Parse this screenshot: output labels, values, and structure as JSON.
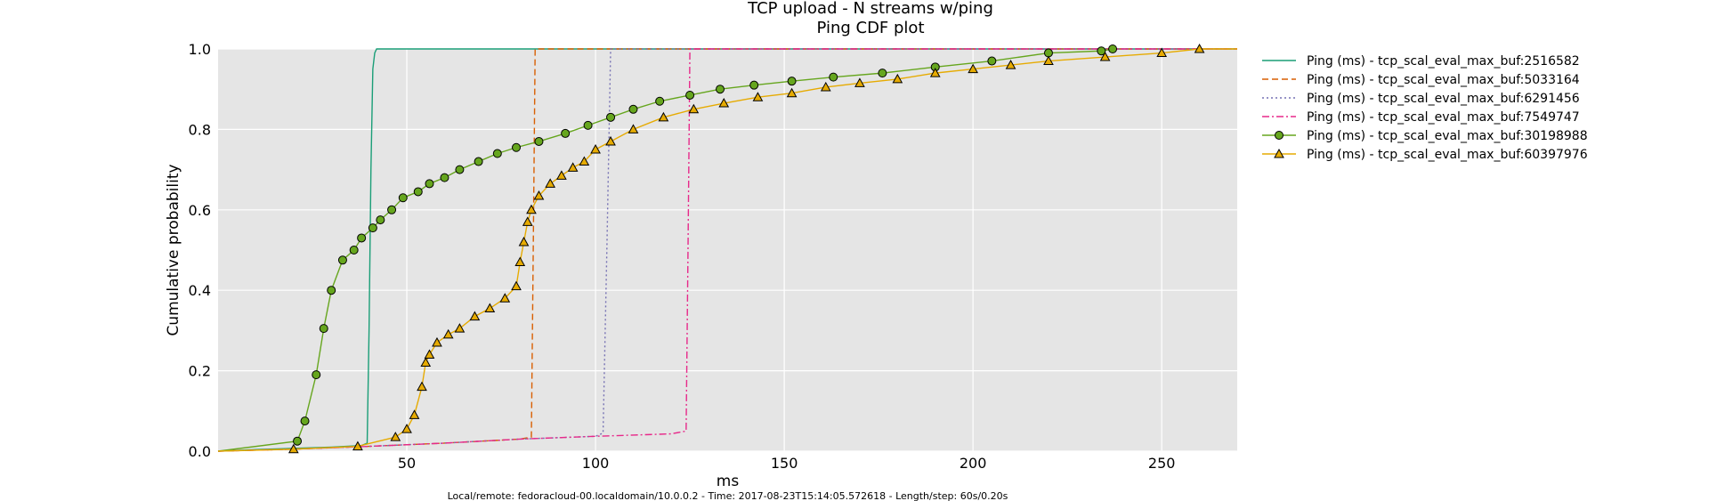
{
  "chart_data": {
    "type": "line",
    "title": "TCP upload - N streams w/ping",
    "subtitle": "Ping CDF plot",
    "xlabel": "ms",
    "ylabel": "Cumulative probability",
    "xlim": [
      0,
      270
    ],
    "ylim": [
      0,
      1
    ],
    "xticks": [
      50,
      100,
      150,
      200,
      250
    ],
    "yticks": [
      0.0,
      0.2,
      0.4,
      0.6,
      0.8,
      1.0
    ],
    "ytick_labels": [
      "0.0",
      "0.2",
      "0.4",
      "0.6",
      "0.8",
      "1.0"
    ],
    "grid": true,
    "legend_position": "outside-right",
    "footer": "Local/remote: fedoracloud-00.localdomain/10.0.0.2 - Time: 2017-08-23T15:14:05.572618 - Length/step: 60s/0.20s",
    "series": [
      {
        "name": "Ping (ms) - tcp_scal_eval_max_buf:2516582",
        "color": "#1a9e77",
        "style": "solid",
        "marker": "none",
        "x": [
          0,
          10,
          20,
          30,
          38,
          39.5,
          40,
          40.5,
          41,
          41.5,
          42,
          270
        ],
        "y": [
          0,
          0.004,
          0.007,
          0.01,
          0.014,
          0.02,
          0.3,
          0.7,
          0.95,
          0.99,
          1.0,
          1.0
        ]
      },
      {
        "name": "Ping (ms) - tcp_scal_eval_max_buf:5033164",
        "color": "#d95f02",
        "style": "dashed",
        "marker": "none",
        "x": [
          0,
          20,
          40,
          60,
          80,
          83,
          83.5,
          84,
          270
        ],
        "y": [
          0,
          0.005,
          0.012,
          0.02,
          0.03,
          0.035,
          0.5,
          1.0,
          1.0
        ]
      },
      {
        "name": "Ping (ms) - tcp_scal_eval_max_buf:6291456",
        "color": "#7570b3",
        "style": "dotted",
        "marker": "none",
        "x": [
          0,
          20,
          40,
          60,
          80,
          100,
          102,
          103,
          104,
          270
        ],
        "y": [
          0,
          0.005,
          0.012,
          0.02,
          0.03,
          0.037,
          0.045,
          0.5,
          1.0,
          1.0
        ]
      },
      {
        "name": "Ping (ms) - tcp_scal_eval_max_buf:7549747",
        "color": "#e7298a",
        "style": "dashdot",
        "marker": "none",
        "x": [
          0,
          20,
          40,
          60,
          80,
          100,
          110,
          120,
          124,
          124.5,
          125,
          270
        ],
        "y": [
          0,
          0.005,
          0.012,
          0.02,
          0.03,
          0.037,
          0.04,
          0.043,
          0.05,
          0.5,
          1.0,
          1.0
        ]
      },
      {
        "name": "Ping (ms) - tcp_scal_eval_max_buf:30198988",
        "color": "#66a61e",
        "style": "solid",
        "marker": "circle",
        "x": [
          0,
          21,
          23,
          26,
          28,
          30,
          33,
          36,
          38,
          41,
          43,
          46,
          49,
          53,
          56,
          60,
          64,
          69,
          74,
          79,
          85,
          92,
          98,
          104,
          110,
          117,
          125,
          133,
          142,
          152,
          163,
          176,
          190,
          205,
          220,
          234,
          237
        ],
        "y": [
          0,
          0.025,
          0.075,
          0.19,
          0.305,
          0.4,
          0.475,
          0.5,
          0.53,
          0.555,
          0.575,
          0.6,
          0.63,
          0.645,
          0.665,
          0.68,
          0.7,
          0.72,
          0.74,
          0.755,
          0.77,
          0.79,
          0.81,
          0.83,
          0.85,
          0.87,
          0.885,
          0.9,
          0.91,
          0.92,
          0.93,
          0.94,
          0.955,
          0.97,
          0.99,
          0.995,
          1.0
        ]
      },
      {
        "name": "Ping (ms) - tcp_scal_eval_max_buf:60397976",
        "color": "#e6ab02",
        "style": "solid",
        "marker": "triangle",
        "x": [
          0,
          20,
          37,
          47,
          50,
          52,
          54,
          55,
          56,
          58,
          61,
          64,
          68,
          72,
          76,
          79,
          80,
          81,
          82,
          83,
          85,
          88,
          91,
          94,
          97,
          100,
          104,
          110,
          118,
          126,
          134,
          143,
          152,
          161,
          170,
          180,
          190,
          200,
          210,
          220,
          235,
          250,
          260,
          270
        ],
        "y": [
          0,
          0.005,
          0.012,
          0.035,
          0.055,
          0.09,
          0.16,
          0.22,
          0.24,
          0.27,
          0.29,
          0.305,
          0.335,
          0.355,
          0.38,
          0.41,
          0.47,
          0.52,
          0.57,
          0.6,
          0.635,
          0.665,
          0.685,
          0.705,
          0.72,
          0.75,
          0.77,
          0.8,
          0.83,
          0.85,
          0.865,
          0.88,
          0.89,
          0.905,
          0.915,
          0.925,
          0.94,
          0.95,
          0.96,
          0.97,
          0.98,
          0.99,
          1.0,
          1.0
        ]
      }
    ]
  }
}
